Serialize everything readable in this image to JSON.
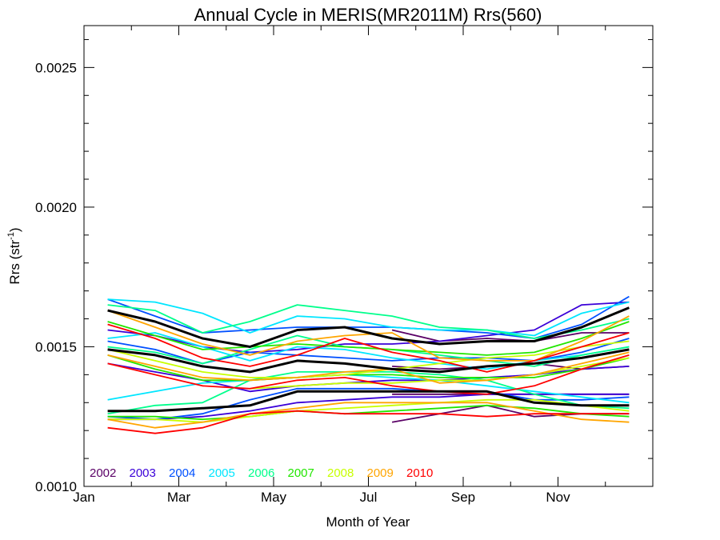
{
  "chart_data": {
    "type": "line",
    "title": "Annual Cycle in MERIS(MR2011M) Rrs(560)",
    "xlabel": "Month of Year",
    "ylabel_main": "Rrs (str",
    "ylabel_sup": "-1",
    "ylabel_close": ")",
    "xlim": [
      0,
      12
    ],
    "ylim": [
      0.001,
      0.00265
    ],
    "x_ticks": [
      {
        "value": 0,
        "label": "Jan"
      },
      {
        "value": 2,
        "label": "Mar"
      },
      {
        "value": 4,
        "label": "May"
      },
      {
        "value": 6,
        "label": "Jul"
      },
      {
        "value": 8,
        "label": "Sep"
      },
      {
        "value": 10,
        "label": "Nov"
      }
    ],
    "y_ticks": [
      {
        "value": 0.001,
        "label": "0.0010"
      },
      {
        "value": 0.0015,
        "label": "0.0015"
      },
      {
        "value": 0.002,
        "label": "0.0020"
      },
      {
        "value": 0.0025,
        "label": "0.0025"
      }
    ],
    "grid": false,
    "legend_position": "bottom-left inside plot",
    "legend": [
      {
        "label": "2002",
        "color": "#5a0066"
      },
      {
        "label": "2003",
        "color": "#3a00d8"
      },
      {
        "label": "2004",
        "color": "#0050ff"
      },
      {
        "label": "2005",
        "color": "#00e6ff"
      },
      {
        "label": "2006",
        "color": "#00ff8c"
      },
      {
        "label": "2007",
        "color": "#22e600"
      },
      {
        "label": "2008",
        "color": "#c8ff00"
      },
      {
        "label": "2009",
        "color": "#ffa500"
      },
      {
        "label": "2010",
        "color": "#ff0000"
      }
    ],
    "series": [
      {
        "color": "#5a0066",
        "x": [
          6.5,
          7.5,
          8.5,
          9.5,
          10.5,
          11.5
        ],
        "values": [
          0.00123,
          0.00126,
          0.00129,
          0.00125,
          0.00126,
          0.00126
        ]
      },
      {
        "color": "#5a0066",
        "x": [
          6.5,
          7.5,
          8.5,
          9.5,
          10.5,
          11.5
        ],
        "values": [
          0.00133,
          0.00133,
          0.00133,
          0.00133,
          0.00133,
          0.00133
        ]
      },
      {
        "color": "#5a0066",
        "x": [
          6.5,
          7.5,
          8.5,
          9.5,
          10.5,
          11.5
        ],
        "values": [
          0.00143,
          0.00142,
          0.00143,
          0.00144,
          0.00142,
          0.00143
        ]
      },
      {
        "color": "#5a0066",
        "x": [
          6.5,
          7.5,
          8.5,
          9.5,
          10.5,
          11.5
        ],
        "values": [
          0.00156,
          0.00152,
          0.00153,
          0.00152,
          0.00155,
          0.00155
        ]
      },
      {
        "color": "#3a00d8",
        "x": [
          0.5,
          1.5,
          2.5,
          3.5,
          4.5,
          5.5,
          6.5,
          7.5,
          8.5,
          9.5,
          10.5,
          11.5
        ],
        "values": [
          0.00124,
          0.00124,
          0.00125,
          0.00127,
          0.0013,
          0.00131,
          0.00132,
          0.00132,
          0.00133,
          0.00133,
          0.00133,
          0.00133
        ]
      },
      {
        "color": "#3a00d8",
        "x": [
          0.5,
          1.5,
          2.5,
          3.5,
          4.5,
          5.5,
          6.5,
          7.5,
          8.5,
          9.5,
          10.5,
          11.5
        ],
        "values": [
          0.00144,
          0.00141,
          0.00138,
          0.00134,
          0.00136,
          0.00137,
          0.00138,
          0.00138,
          0.00139,
          0.0014,
          0.00142,
          0.00143
        ]
      },
      {
        "color": "#3a00d8",
        "x": [
          0.5,
          1.5,
          2.5,
          3.5,
          4.5,
          5.5,
          6.5,
          7.5,
          8.5,
          9.5,
          10.5,
          11.5
        ],
        "values": [
          0.00156,
          0.00154,
          0.0015,
          0.00148,
          0.00149,
          0.00151,
          0.00151,
          0.00152,
          0.00154,
          0.00156,
          0.00165,
          0.00166
        ]
      },
      {
        "color": "#0050ff",
        "x": [
          0.5,
          1.5,
          2.5,
          3.5,
          4.5,
          5.5,
          6.5,
          7.5,
          8.5,
          9.5,
          10.5,
          11.5
        ],
        "values": [
          0.00167,
          0.00161,
          0.00155,
          0.00156,
          0.00157,
          0.00157,
          0.00157,
          0.00156,
          0.00155,
          0.00153,
          0.00158,
          0.00168
        ]
      },
      {
        "color": "#0050ff",
        "x": [
          0.5,
          1.5,
          2.5,
          3.5,
          4.5,
          5.5,
          6.5,
          7.5,
          8.5,
          9.5,
          10.5,
          11.5
        ],
        "values": [
          0.00152,
          0.00149,
          0.00144,
          0.00148,
          0.00147,
          0.00146,
          0.00145,
          0.00146,
          0.00146,
          0.00145,
          0.00148,
          0.00153
        ]
      },
      {
        "color": "#0050ff",
        "x": [
          0.5,
          1.5,
          2.5,
          3.5,
          4.5,
          5.5,
          6.5,
          7.5,
          8.5,
          9.5,
          10.5,
          11.5
        ],
        "values": [
          0.00125,
          0.00124,
          0.00126,
          0.00131,
          0.00135,
          0.00135,
          0.00135,
          0.00134,
          0.00134,
          0.00131,
          0.00131,
          0.00132
        ]
      },
      {
        "color": "#00e6ff",
        "x": [
          0.5,
          1.5,
          2.5,
          3.5,
          4.5,
          5.5,
          6.5,
          7.5,
          8.5,
          9.5,
          10.5,
          11.5
        ],
        "values": [
          0.00167,
          0.00166,
          0.00162,
          0.00155,
          0.00161,
          0.0016,
          0.00157,
          0.00156,
          0.00156,
          0.00154,
          0.00162,
          0.00166
        ]
      },
      {
        "color": "#00e6ff",
        "x": [
          0.5,
          1.5,
          2.5,
          3.5,
          4.5,
          5.5,
          6.5,
          7.5,
          8.5,
          9.5,
          10.5,
          11.5
        ],
        "values": [
          0.00153,
          0.00155,
          0.0015,
          0.00145,
          0.0015,
          0.00149,
          0.00146,
          0.00144,
          0.00142,
          0.00145,
          0.00147,
          0.0015
        ]
      },
      {
        "color": "#00e6ff",
        "x": [
          0.5,
          1.5,
          2.5,
          3.5,
          4.5,
          5.5,
          6.5,
          7.5,
          8.5,
          9.5,
          10.5,
          11.5
        ],
        "values": [
          0.00131,
          0.00134,
          0.00137,
          0.00138,
          0.00139,
          0.0014,
          0.00139,
          0.00138,
          0.00136,
          0.00134,
          0.00132,
          0.0013
        ]
      },
      {
        "color": "#00ff8c",
        "x": [
          0.5,
          1.5,
          2.5,
          3.5,
          4.5,
          5.5,
          6.5,
          7.5,
          8.5,
          9.5,
          10.5,
          11.5
        ],
        "values": [
          0.00165,
          0.00163,
          0.00155,
          0.00159,
          0.00165,
          0.00163,
          0.00161,
          0.00157,
          0.00156,
          0.00153,
          0.00156,
          0.0016
        ]
      },
      {
        "color": "#00ff8c",
        "x": [
          0.5,
          1.5,
          2.5,
          3.5,
          4.5,
          5.5,
          6.5,
          7.5,
          8.5,
          9.5,
          10.5,
          11.5
        ],
        "values": [
          0.0015,
          0.00148,
          0.00144,
          0.00149,
          0.00154,
          0.0015,
          0.00149,
          0.00147,
          0.00145,
          0.00143,
          0.00147,
          0.0015
        ]
      },
      {
        "color": "#00ff8c",
        "x": [
          0.5,
          1.5,
          2.5,
          3.5,
          4.5,
          5.5,
          6.5,
          7.5,
          8.5,
          9.5,
          10.5,
          11.5
        ],
        "values": [
          0.00126,
          0.00129,
          0.0013,
          0.00138,
          0.00141,
          0.00141,
          0.00141,
          0.0014,
          0.00138,
          0.00133,
          0.00129,
          0.00128
        ]
      },
      {
        "color": "#22e600",
        "x": [
          0.5,
          1.5,
          2.5,
          3.5,
          4.5,
          5.5,
          6.5,
          7.5,
          8.5,
          9.5,
          10.5,
          11.5
        ],
        "values": [
          0.00159,
          0.00154,
          0.00149,
          0.0015,
          0.00151,
          0.0015,
          0.00149,
          0.00148,
          0.00147,
          0.00148,
          0.00153,
          0.00159
        ]
      },
      {
        "color": "#22e600",
        "x": [
          0.5,
          1.5,
          2.5,
          3.5,
          4.5,
          5.5,
          6.5,
          7.5,
          8.5,
          9.5,
          10.5,
          11.5
        ],
        "values": [
          0.00147,
          0.00142,
          0.00138,
          0.00138,
          0.00139,
          0.0014,
          0.0014,
          0.00139,
          0.00139,
          0.00139,
          0.00142,
          0.00146
        ]
      },
      {
        "color": "#22e600",
        "x": [
          0.5,
          1.5,
          2.5,
          3.5,
          4.5,
          5.5,
          6.5,
          7.5,
          8.5,
          9.5,
          10.5,
          11.5
        ],
        "values": [
          0.00125,
          0.00125,
          0.00124,
          0.00125,
          0.00127,
          0.00126,
          0.00127,
          0.00128,
          0.00129,
          0.00128,
          0.00126,
          0.00125
        ]
      },
      {
        "color": "#c8ff00",
        "x": [
          0.5,
          1.5,
          2.5,
          3.5,
          4.5,
          5.5,
          6.5,
          7.5,
          8.5,
          9.5,
          10.5,
          11.5
        ],
        "values": [
          0.00149,
          0.00145,
          0.00141,
          0.00139,
          0.00139,
          0.0014,
          0.00142,
          0.00144,
          0.00146,
          0.00147,
          0.0015,
          0.00152
        ]
      },
      {
        "color": "#c8ff00",
        "x": [
          0.5,
          1.5,
          2.5,
          3.5,
          4.5,
          5.5,
          6.5,
          7.5,
          8.5,
          9.5,
          10.5,
          11.5
        ],
        "values": [
          0.00124,
          0.00124,
          0.00123,
          0.00125,
          0.00127,
          0.00128,
          0.00129,
          0.0013,
          0.00131,
          0.00131,
          0.00129,
          0.00127
        ]
      },
      {
        "color": "#c8ff00",
        "x": [
          3.5,
          4.5,
          5.5,
          6.5,
          7.5,
          8.5,
          9.5,
          10.5,
          11.5
        ],
        "values": [
          0.00135,
          0.00136,
          0.00137,
          0.00137,
          0.00138,
          0.00138,
          0.0014,
          0.00143,
          0.00146
        ]
      },
      {
        "color": "#ffa500",
        "x": [
          0.5,
          1.5,
          2.5,
          3.5,
          4.5,
          5.5,
          6.5,
          7.5,
          8.5,
          9.5,
          10.5,
          11.5
        ],
        "values": [
          0.00163,
          0.00157,
          0.00151,
          0.00147,
          0.00152,
          0.00154,
          0.00155,
          0.00146,
          0.00145,
          0.00145,
          0.00152,
          0.00161
        ]
      },
      {
        "color": "#ffa500",
        "x": [
          0.5,
          1.5,
          2.5,
          3.5,
          4.5,
          5.5,
          6.5,
          7.5,
          8.5,
          9.5,
          10.5,
          11.5
        ],
        "values": [
          0.00147,
          0.00143,
          0.00139,
          0.00138,
          0.00139,
          0.00141,
          0.00142,
          0.00137,
          0.00138,
          0.0014,
          0.00144,
          0.00148
        ]
      },
      {
        "color": "#ffa500",
        "x": [
          0.5,
          1.5,
          2.5,
          3.5,
          4.5,
          5.5,
          6.5,
          7.5,
          8.5,
          9.5,
          10.5,
          11.5
        ],
        "values": [
          0.00124,
          0.00121,
          0.00123,
          0.00126,
          0.00128,
          0.0013,
          0.0013,
          0.0013,
          0.0013,
          0.00127,
          0.00124,
          0.00123
        ]
      },
      {
        "color": "#ff0000",
        "x": [
          0.5,
          1.5,
          2.5,
          3.5,
          4.5,
          5.5,
          6.5,
          7.5,
          8.5,
          9.5,
          10.5,
          11.5
        ],
        "values": [
          0.00158,
          0.00153,
          0.00146,
          0.00143,
          0.00147,
          0.00153,
          0.00148,
          0.00145,
          0.00141,
          0.00145,
          0.0015,
          0.00155
        ]
      },
      {
        "color": "#ff0000",
        "x": [
          0.5,
          1.5,
          2.5,
          3.5,
          4.5,
          5.5,
          6.5,
          7.5,
          8.5,
          9.5,
          10.5,
          11.5
        ],
        "values": [
          0.00144,
          0.0014,
          0.00136,
          0.00135,
          0.00138,
          0.00139,
          0.00136,
          0.00134,
          0.00133,
          0.00136,
          0.00142,
          0.00147
        ]
      },
      {
        "color": "#ff0000",
        "x": [
          0.5,
          1.5,
          2.5,
          3.5,
          4.5,
          5.5,
          6.5,
          7.5,
          8.5,
          9.5,
          10.5,
          11.5
        ],
        "values": [
          0.00121,
          0.00119,
          0.00121,
          0.00126,
          0.00127,
          0.00126,
          0.00126,
          0.00126,
          0.00125,
          0.00126,
          0.00126,
          0.00126
        ]
      },
      {
        "color": "#000000",
        "bold": true,
        "x": [
          0.5,
          1.5,
          2.5,
          3.5,
          4.5,
          5.5,
          6.5,
          7.5,
          8.5,
          9.5,
          10.5,
          11.5
        ],
        "values": [
          0.00163,
          0.00159,
          0.00153,
          0.0015,
          0.00156,
          0.00157,
          0.00153,
          0.00151,
          0.00152,
          0.00152,
          0.00157,
          0.00164
        ]
      },
      {
        "color": "#000000",
        "bold": true,
        "x": [
          0.5,
          1.5,
          2.5,
          3.5,
          4.5,
          5.5,
          6.5,
          7.5,
          8.5,
          9.5,
          10.5,
          11.5
        ],
        "values": [
          0.00149,
          0.00147,
          0.00143,
          0.00141,
          0.00145,
          0.00144,
          0.00142,
          0.00141,
          0.00143,
          0.00144,
          0.00146,
          0.00149
        ]
      },
      {
        "color": "#000000",
        "bold": true,
        "x": [
          0.5,
          1.5,
          2.5,
          3.5,
          4.5,
          5.5,
          6.5,
          7.5,
          8.5,
          9.5,
          10.5,
          11.5
        ],
        "values": [
          0.00127,
          0.00127,
          0.00128,
          0.00129,
          0.00134,
          0.00134,
          0.00134,
          0.00134,
          0.00134,
          0.0013,
          0.00129,
          0.00129
        ]
      }
    ]
  }
}
